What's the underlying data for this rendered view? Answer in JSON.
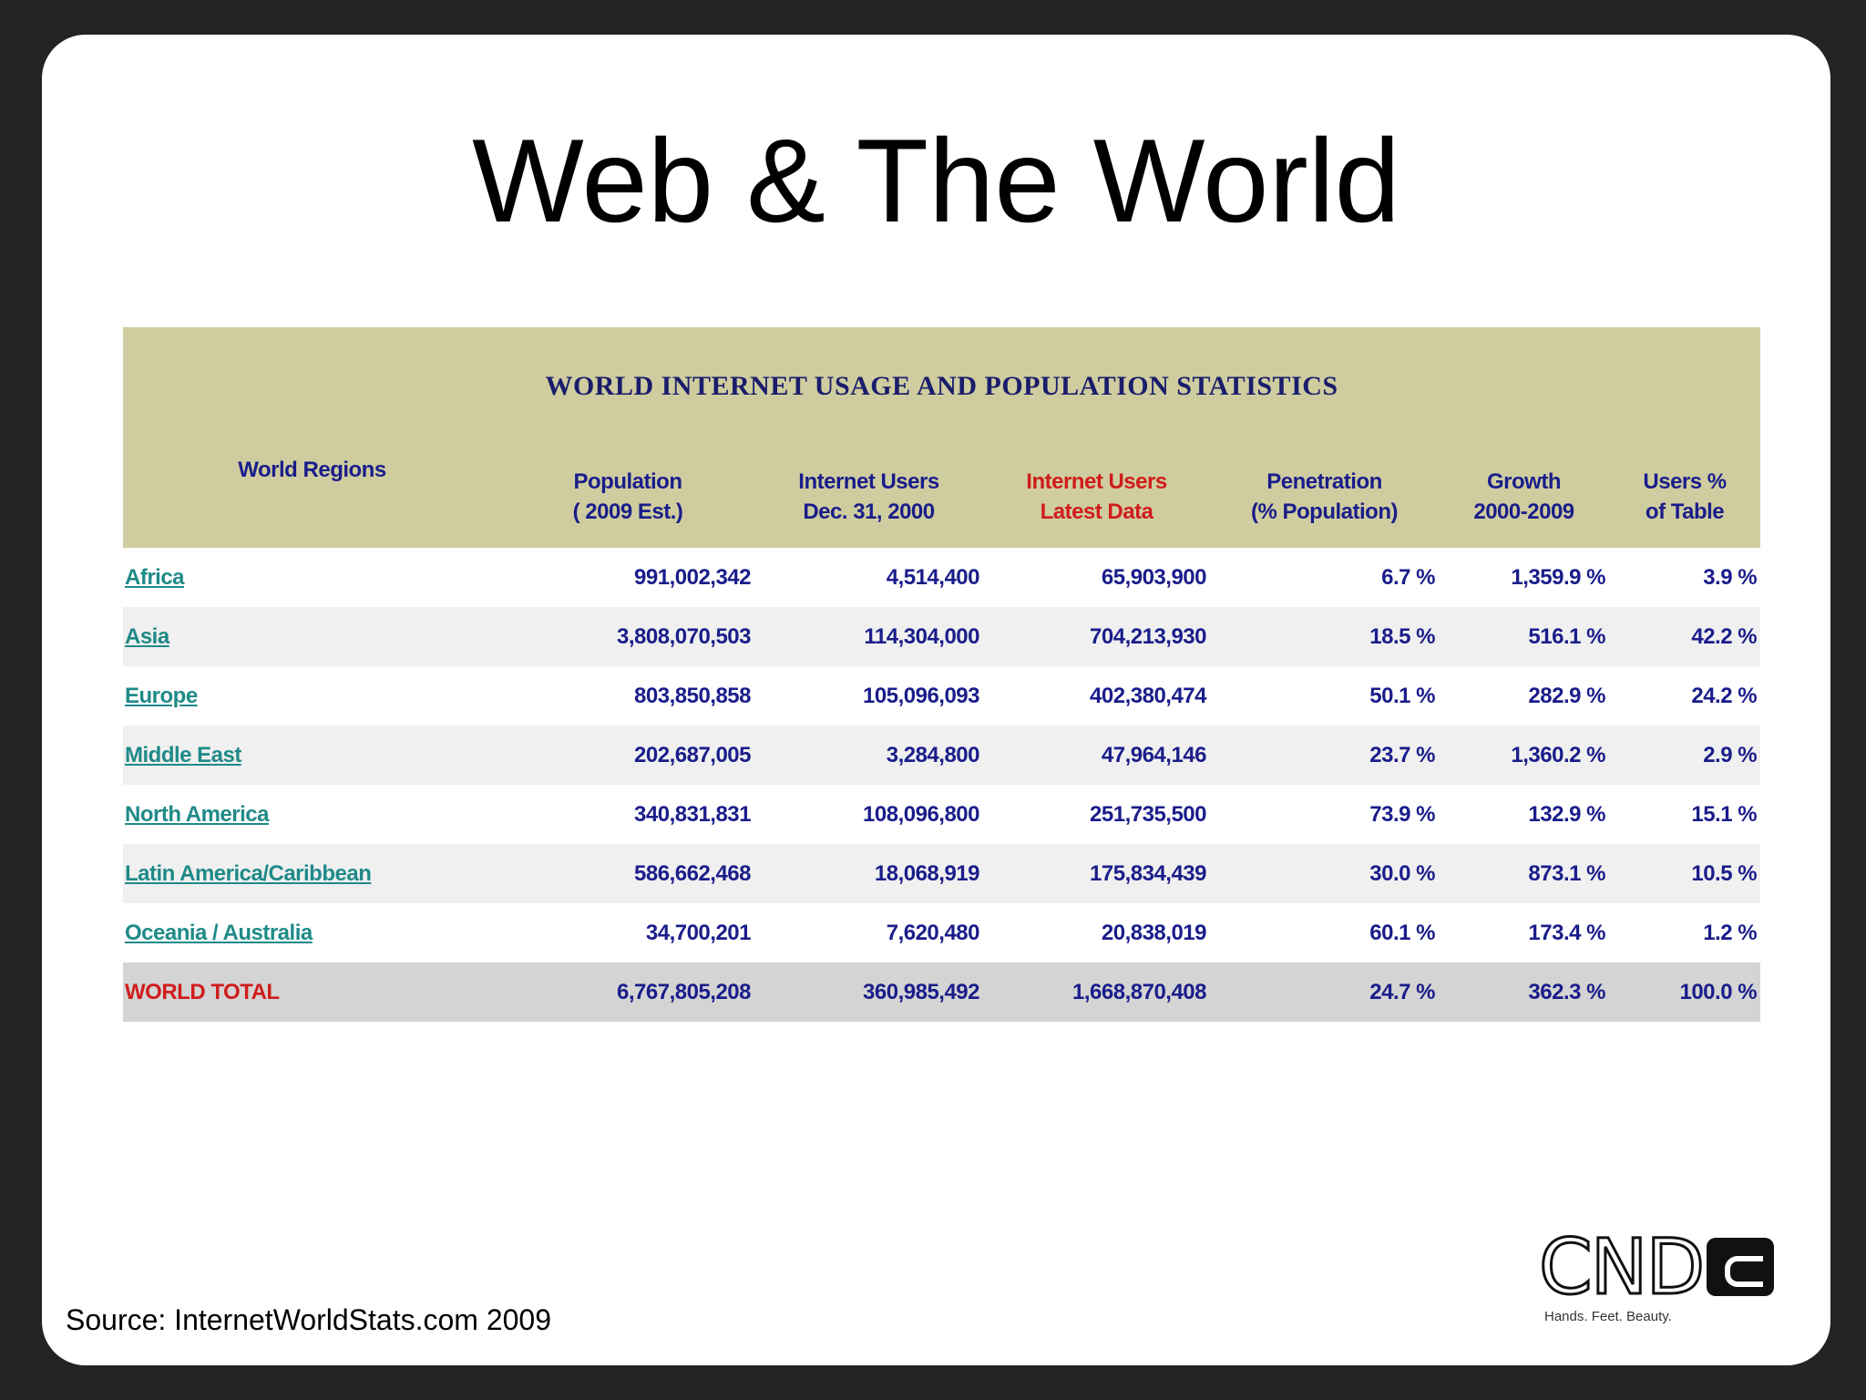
{
  "slide": {
    "title": "Web & The World",
    "source": "Source: InternetWorldStats.com 2009"
  },
  "table": {
    "caption": "WORLD INTERNET USAGE AND POPULATION STATISTICS",
    "headers": {
      "region": "World Regions",
      "population": [
        "Population",
        "( 2009 Est.)"
      ],
      "users2000": [
        "Internet Users",
        "Dec. 31, 2000"
      ],
      "latest": [
        "Internet Users",
        "Latest Data"
      ],
      "penetration": [
        "Penetration",
        "(% Population)"
      ],
      "growth": [
        "Growth",
        "2000-2009"
      ],
      "share": [
        "Users %",
        "of Table"
      ]
    },
    "rows": [
      [
        "Africa",
        "991,002,342",
        "4,514,400",
        "65,903,900",
        "6.7 %",
        "1,359.9 %",
        "3.9 %"
      ],
      [
        "Asia",
        "3,808,070,503",
        "114,304,000",
        "704,213,930",
        "18.5 %",
        "516.1 %",
        "42.2 %"
      ],
      [
        "Europe",
        "803,850,858",
        "105,096,093",
        "402,380,474",
        "50.1 %",
        "282.9 %",
        "24.2 %"
      ],
      [
        "Middle East",
        "202,687,005",
        "3,284,800",
        "47,964,146",
        "23.7 %",
        "1,360.2 %",
        "2.9 %"
      ],
      [
        "North America",
        "340,831,831",
        "108,096,800",
        "251,735,500",
        "73.9 %",
        "132.9 %",
        "15.1 %"
      ],
      [
        "Latin America/Caribbean",
        "586,662,468",
        "18,068,919",
        "175,834,439",
        "30.0 %",
        "873.1 %",
        "10.5 %"
      ],
      [
        "Oceania / Australia",
        "34,700,201",
        "7,620,480",
        "20,838,019",
        "60.1 %",
        "173.4 %",
        "1.2 %"
      ]
    ],
    "total": [
      "WORLD TOTAL",
      "6,767,805,208",
      "360,985,492",
      "1,668,870,408",
      "24.7 %",
      "362.3 %",
      "100.0 %"
    ]
  },
  "logo": {
    "letters": "CND",
    "tagline": "Hands. Feet. Beauty."
  },
  "colors": {
    "header_bg": "#cfcd9f",
    "header_text": "#1a1d8a",
    "latest_header": "#d01c1c",
    "region_link": "#1f8a88",
    "total_label": "#d01c1c"
  }
}
